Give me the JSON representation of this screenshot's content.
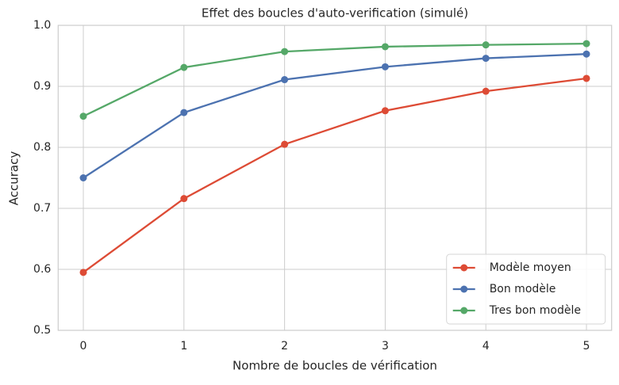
{
  "chart_data": {
    "type": "line",
    "title": "Effet des boucles d'auto-verification (simulé)",
    "x_label": "Nombre de boucles de vérification",
    "y_label": "Accuracy",
    "x": [
      0,
      1,
      2,
      3,
      4,
      5
    ],
    "xlim": [
      -0.25,
      5.25
    ],
    "xticks": [
      0,
      1,
      2,
      3,
      4,
      5
    ],
    "ylim": [
      0.5,
      1
    ],
    "yticks": [
      0.5,
      0.6,
      0.7,
      0.8,
      0.9,
      {
        "value": 1,
        "label": "1.0"
      }
    ],
    "grid": true,
    "legend": "lower right",
    "series": [
      {
        "name": "Modèle moyen",
        "color": "#dd4b35",
        "values": [
          0.595,
          0.716,
          0.805,
          0.86,
          0.892,
          0.913
        ]
      },
      {
        "name": "Bon modèle",
        "color": "#4c72b0",
        "values": [
          0.75,
          0.857,
          0.911,
          0.932,
          0.946,
          0.953
        ]
      },
      {
        "name": "Tres bon modèle",
        "color": "#55a868",
        "values": [
          0.851,
          0.931,
          0.957,
          0.965,
          0.968,
          0.97
        ]
      }
    ]
  }
}
